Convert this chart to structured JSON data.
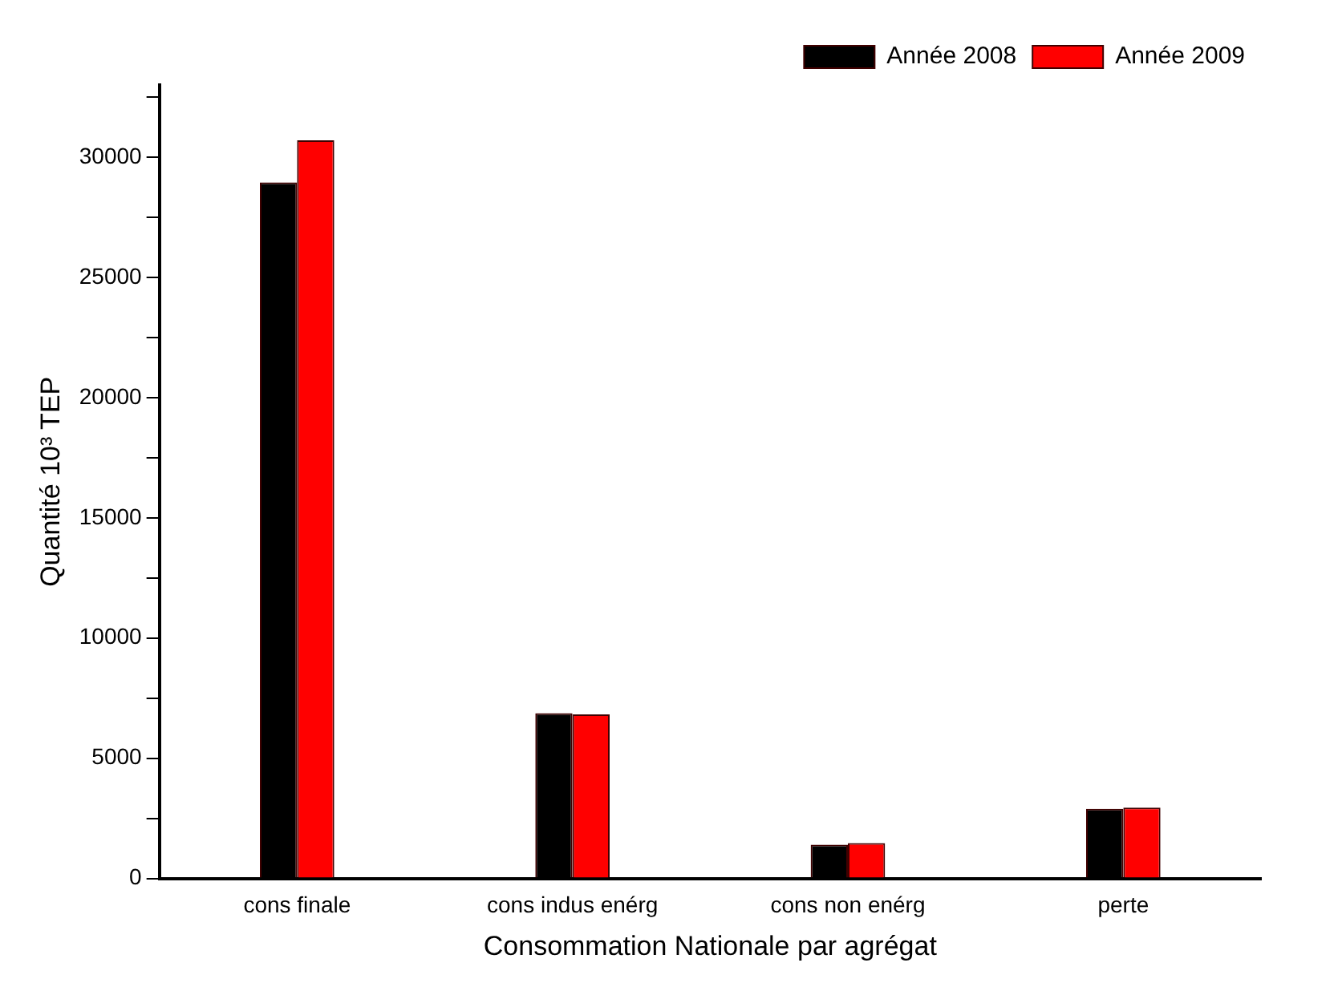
{
  "chart_data": {
    "type": "bar",
    "xlabel": "Consommation Nationale par agrégat",
    "ylabel": "Quantité 10³ TEP",
    "categories": [
      "cons finale",
      "cons indus enérg",
      "cons non enérg",
      "perte"
    ],
    "series": [
      {
        "name": "Année 2008",
        "color": "#000000",
        "values": [
          28950,
          6870,
          1400,
          2900
        ]
      },
      {
        "name": "Année 2009",
        "color": "#ff0000",
        "values": [
          30700,
          6820,
          1470,
          2950
        ]
      }
    ],
    "ylim": [
      0,
      33000
    ],
    "yticks": [
      0,
      {
        "value": 2500,
        "label": null
      },
      5000,
      {
        "value": 7500,
        "label": null
      },
      10000,
      {
        "value": 12500,
        "label": null
      },
      15000,
      {
        "value": 17500,
        "label": null
      },
      20000,
      {
        "value": 22500,
        "label": null
      },
      25000,
      {
        "value": 27500,
        "label": null
      },
      30000,
      {
        "value": 32500,
        "label": null
      }
    ],
    "grid": false,
    "legend": "top right"
  }
}
